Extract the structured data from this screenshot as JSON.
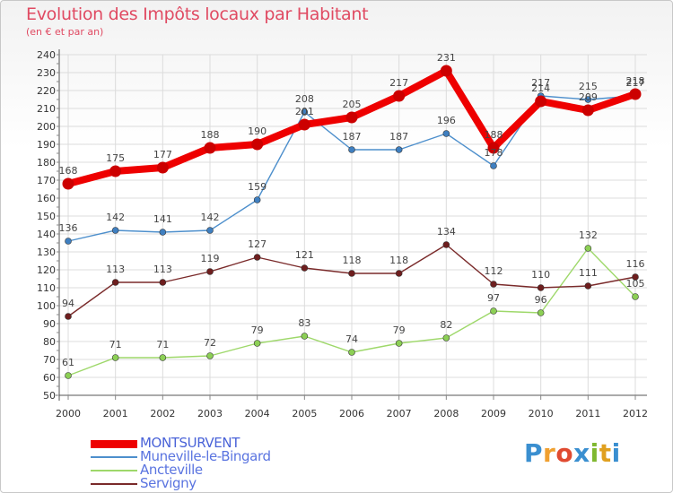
{
  "title": "Evolution des Impôts locaux par Habitant",
  "subtitle": "(en € et par an)",
  "logo": {
    "letters": [
      "P",
      "r",
      "o",
      "x",
      "i",
      "t",
      "i"
    ],
    "colors": [
      "#3a8fd0",
      "#f0a030",
      "#e04a30",
      "#3a8fd0",
      "#80b830",
      "#e0a020",
      "#3a8fd0"
    ]
  },
  "chart_data": {
    "type": "line",
    "x": [
      "2000",
      "2001",
      "2002",
      "2003",
      "2004",
      "2005",
      "2006",
      "2007",
      "2008",
      "2009",
      "2010",
      "2011",
      "2012"
    ],
    "ylim": [
      50,
      240
    ],
    "ytick_step": 10,
    "grid": true,
    "legend_position": "bottom-left",
    "series": [
      {
        "name": "MONTSURVENT",
        "values": [
          168,
          175,
          177,
          188,
          190,
          201,
          205,
          217,
          231,
          188,
          214,
          209,
          218
        ],
        "color": "#ee0000",
        "marker": "#cc0000",
        "bold": true,
        "labels": [
          "168",
          "175",
          "177",
          "188",
          "190",
          "201",
          "205",
          "217",
          "231",
          "188",
          "214",
          "209",
          "218"
        ]
      },
      {
        "name": "Muneville-le-Bingard",
        "values": [
          136,
          142,
          141,
          142,
          159,
          208,
          187,
          187,
          196,
          178,
          217,
          215,
          217
        ],
        "color": "#4d8fcc",
        "marker": "#3f7fc0",
        "bold": false,
        "labels": [
          "136",
          "142",
          "141",
          "142",
          "159",
          "208",
          "187",
          "187",
          "196",
          "178",
          "217",
          "215",
          "217"
        ]
      },
      {
        "name": "Ancteville",
        "values": [
          61,
          71,
          71,
          72,
          79,
          83,
          74,
          79,
          82,
          97,
          96,
          132,
          105
        ],
        "color": "#9ed86a",
        "marker": "#8ccf55",
        "bold": false,
        "labels": [
          "61",
          "71",
          "71",
          "72",
          "79",
          "83",
          "74",
          "79",
          "82",
          "97",
          "96",
          "132",
          "105"
        ]
      },
      {
        "name": "Servigny",
        "values": [
          94,
          113,
          113,
          119,
          127,
          121,
          118,
          118,
          134,
          112,
          110,
          111,
          116
        ],
        "color": "#7a2a2a",
        "marker": "#6e1e1e",
        "bold": false,
        "labels": [
          "94",
          "113",
          "113",
          "119",
          "127",
          "121",
          "118",
          "118",
          "134",
          "112",
          "110",
          "111",
          "116"
        ]
      }
    ]
  }
}
